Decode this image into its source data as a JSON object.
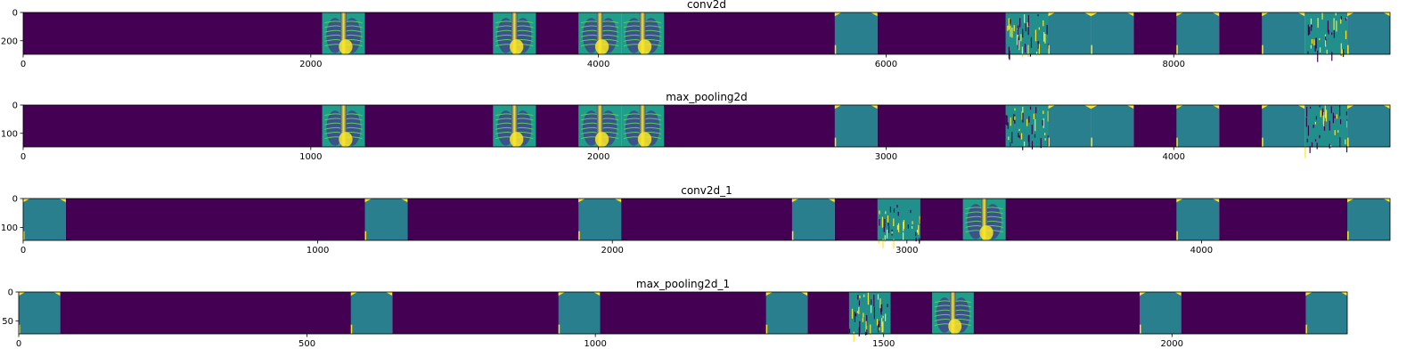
{
  "chart_data": [
    {
      "type": "heatmap",
      "title": "conv2d",
      "colormap": "viridis",
      "xlim": [
        0,
        9504
      ],
      "ylim": [
        0,
        296
      ],
      "xticks": [
        "0",
        "2000",
        "4000",
        "6000",
        "8000"
      ],
      "yticks": [
        "0",
        "200"
      ],
      "xtick_values": [
        0,
        2000,
        4000,
        6000,
        8000
      ],
      "ytick_values": [
        0,
        200
      ],
      "grid": false,
      "tiles": [
        "dark",
        "dark",
        "dark",
        "dark",
        "dark",
        "dark",
        "dark",
        "xray",
        "dark",
        "dark",
        "dark",
        "xray",
        "dark",
        "xray",
        "xray",
        "dark",
        "dark",
        "dark",
        "dark",
        "teal",
        "dark",
        "dark",
        "dark",
        "edges",
        "teal",
        "teal",
        "dark",
        "teal",
        "dark",
        "teal",
        "edges",
        "teal"
      ]
    },
    {
      "type": "heatmap",
      "title": "max_pooling2d",
      "colormap": "viridis",
      "xlim": [
        0,
        4752
      ],
      "ylim": [
        0,
        148
      ],
      "xticks": [
        "0",
        "1000",
        "2000",
        "3000",
        "4000"
      ],
      "yticks": [
        "0",
        "100"
      ],
      "xtick_values": [
        0,
        1000,
        2000,
        3000,
        4000
      ],
      "ytick_values": [
        0,
        100
      ],
      "grid": false,
      "tiles": [
        "dark",
        "dark",
        "dark",
        "dark",
        "dark",
        "dark",
        "dark",
        "xray",
        "dark",
        "dark",
        "dark",
        "xray",
        "dark",
        "xray",
        "xray",
        "dark",
        "dark",
        "dark",
        "dark",
        "teal",
        "dark",
        "dark",
        "dark",
        "edges",
        "teal",
        "teal",
        "dark",
        "teal",
        "dark",
        "teal",
        "edges",
        "teal"
      ]
    },
    {
      "type": "heatmap",
      "title": "conv2d_1",
      "colormap": "viridis",
      "xlim": [
        0,
        4640
      ],
      "ylim": [
        0,
        145
      ],
      "xticks": [
        "0",
        "1000",
        "2000",
        "3000",
        "4000"
      ],
      "yticks": [
        "0",
        "100"
      ],
      "xtick_values": [
        0,
        1000,
        2000,
        3000,
        4000
      ],
      "ytick_values": [
        0,
        100
      ],
      "grid": false,
      "tiles": [
        "teal",
        "dark",
        "dark",
        "dark",
        "dark",
        "dark",
        "dark",
        "dark",
        "teal",
        "dark",
        "dark",
        "dark",
        "dark",
        "teal",
        "dark",
        "dark",
        "dark",
        "dark",
        "teal",
        "dark",
        "edges",
        "dark",
        "xray",
        "dark",
        "dark",
        "dark",
        "dark",
        "teal",
        "dark",
        "dark",
        "dark",
        "teal"
      ]
    },
    {
      "type": "heatmap",
      "title": "max_pooling2d_1",
      "colormap": "viridis",
      "xlim": [
        0,
        2304
      ],
      "ylim": [
        0,
        72
      ],
      "xticks": [
        "0",
        "500",
        "1000",
        "1500",
        "2000"
      ],
      "yticks": [
        "0",
        "50"
      ],
      "xtick_values": [
        0,
        500,
        1000,
        1500,
        2000
      ],
      "ytick_values": [
        0,
        50
      ],
      "grid": false,
      "tiles": [
        "teal",
        "dark",
        "dark",
        "dark",
        "dark",
        "dark",
        "dark",
        "dark",
        "teal",
        "dark",
        "dark",
        "dark",
        "dark",
        "teal",
        "dark",
        "dark",
        "dark",
        "dark",
        "teal",
        "dark",
        "edges",
        "dark",
        "xray",
        "dark",
        "dark",
        "dark",
        "dark",
        "teal",
        "dark",
        "dark",
        "dark",
        "teal"
      ]
    }
  ],
  "colors": {
    "dark": "#440154",
    "teal": "#21908c",
    "tealDeep": "#2a7f8e",
    "blue": "#3b528b",
    "green": "#5ec962",
    "yellow": "#fde725",
    "lime": "#aadc32",
    "xray_bg": "#1f9e89"
  }
}
